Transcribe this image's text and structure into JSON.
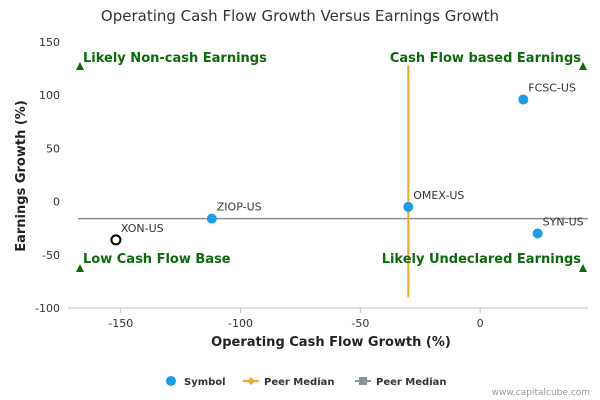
{
  "chart_data": {
    "type": "scatter",
    "title": "Operating Cash Flow Growth Versus Earnings Growth",
    "xlabel": "Operating Cash Flow Growth (%)",
    "ylabel": "Earnings Growth (%)",
    "xlim": [
      -172,
      45
    ],
    "ylim": [
      -100,
      150
    ],
    "x_ticks": [
      -150,
      -100,
      -50,
      0
    ],
    "y_ticks": [
      150,
      100,
      50,
      0,
      -50,
      -100
    ],
    "grid": false,
    "series": [
      {
        "name": "Symbol",
        "points": [
          {
            "label": "FCSC-US",
            "x": 18,
            "y": 96
          },
          {
            "label": "OMEX-US",
            "x": -30,
            "y": -5
          },
          {
            "label": "ZIOP-US",
            "x": -112,
            "y": -16
          },
          {
            "label": "SYN-US",
            "x": 24,
            "y": -30
          },
          {
            "label": "XON-US",
            "x": -152,
            "y": -36,
            "highlight": true
          }
        ]
      }
    ],
    "peer_median": {
      "x": -30,
      "y": -16,
      "y_span": [
        -90,
        128
      ]
    },
    "quadrants": [
      {
        "label": "Likely Non-cash Earnings",
        "pos": "top-left"
      },
      {
        "label": "Cash Flow based Earnings",
        "pos": "top-right"
      },
      {
        "label": "Low Cash Flow Base",
        "pos": "bottom-left"
      },
      {
        "label": "Likely Undeclared Earnings",
        "pos": "bottom-right"
      }
    ],
    "legend": [
      {
        "label": "Symbol",
        "kind": "dot",
        "color": "#1a9ee8"
      },
      {
        "label": "Peer Median",
        "kind": "line-diamond",
        "color": "#f5a623"
      },
      {
        "label": "Peer Median",
        "kind": "line-square",
        "color": "#8a9399"
      }
    ],
    "legend_position": "bottom-center"
  },
  "colors": {
    "point": "#1a9ee8",
    "highlight_stroke": "#000000",
    "median_x": "#f5a623",
    "median_y": "#8a9399",
    "quadrant_text": "#0b6b0b",
    "triangle": "#0b6b0b"
  },
  "credit": "www.capitalcube.com"
}
